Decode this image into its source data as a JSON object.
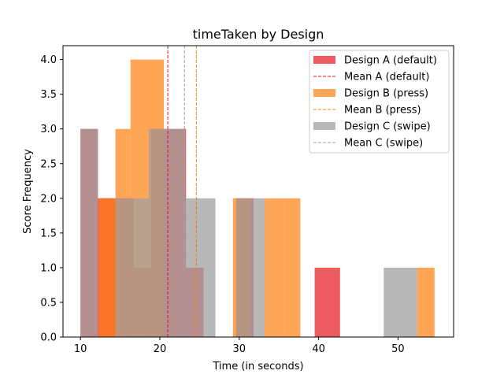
{
  "chart_data": {
    "type": "histogram",
    "title": "timeTaken by Design",
    "xlabel": "Time (in seconds)",
    "ylabel": "Score Frequency",
    "xlim": [
      7.8,
      57.0
    ],
    "ylim": [
      0,
      4.2
    ],
    "x_ticks": [
      10,
      20,
      30,
      40,
      50
    ],
    "y_ticks": [
      0.0,
      0.5,
      1.0,
      1.5,
      2.0,
      2.5,
      3.0,
      3.5,
      4.0
    ],
    "grid": false,
    "legend_position": "top-right",
    "series": [
      {
        "name": "Design A (default)",
        "color": "#e4161d",
        "alpha": 0.7,
        "bins": [
          {
            "x0": 10.0,
            "x1": 12.2,
            "count": 3
          },
          {
            "x0": 12.2,
            "x1": 14.4,
            "count": 2
          },
          {
            "x0": 14.4,
            "x1": 16.7,
            "count": 2
          },
          {
            "x0": 16.7,
            "x1": 18.9,
            "count": 1
          },
          {
            "x0": 18.9,
            "x1": 21.1,
            "count": 3
          },
          {
            "x0": 21.1,
            "x1": 23.3,
            "count": 3
          },
          {
            "x0": 23.3,
            "x1": 25.5,
            "count": 1
          },
          {
            "x0": 29.6,
            "x1": 31.8,
            "count": 2
          },
          {
            "x0": 39.5,
            "x1": 42.7,
            "count": 1
          }
        ],
        "mean": 21.0,
        "mean_label": "Mean A (default)"
      },
      {
        "name": "Design B (press)",
        "color": "#ff7f0e",
        "alpha": 0.7,
        "bins": [
          {
            "x0": 12.3,
            "x1": 14.4,
            "count": 2
          },
          {
            "x0": 14.4,
            "x1": 16.3,
            "count": 3
          },
          {
            "x0": 16.3,
            "x1": 20.5,
            "count": 4
          },
          {
            "x0": 29.2,
            "x1": 31.4,
            "count": 2
          },
          {
            "x0": 33.2,
            "x1": 35.6,
            "count": 2
          },
          {
            "x0": 35.6,
            "x1": 37.7,
            "count": 2
          },
          {
            "x0": 52.4,
            "x1": 54.6,
            "count": 1
          }
        ],
        "mean": 24.6,
        "mean_label": "Mean B (press)"
      },
      {
        "name": "Design C (swipe)",
        "color": "#a0a0a0",
        "alpha": 0.75,
        "bins": [
          {
            "x0": 10.0,
            "x1": 12.2,
            "count": 3
          },
          {
            "x0": 14.4,
            "x1": 16.7,
            "count": 2
          },
          {
            "x0": 16.7,
            "x1": 18.6,
            "count": 2
          },
          {
            "x0": 18.6,
            "x1": 23.2,
            "count": 3
          },
          {
            "x0": 23.2,
            "x1": 27.0,
            "count": 2
          },
          {
            "x0": 29.6,
            "x1": 33.2,
            "count": 2
          },
          {
            "x0": 48.2,
            "x1": 52.4,
            "count": 1
          }
        ],
        "mean": 23.1,
        "mean_label": "Mean C (swipe)"
      }
    ]
  }
}
